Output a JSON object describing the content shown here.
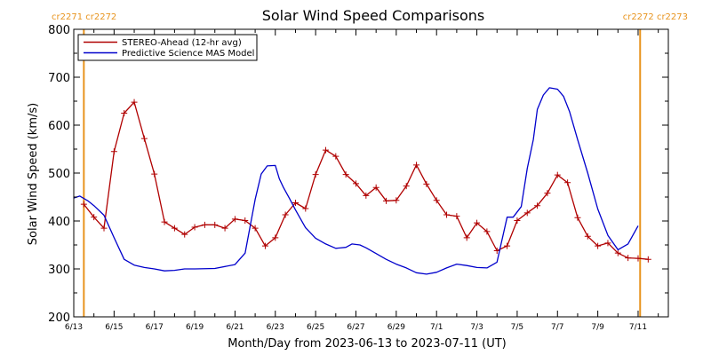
{
  "chart_data": {
    "type": "line",
    "title": "Solar Wind Speed Comparisons",
    "xlabel": "Month/Day from 2023-06-13 to 2023-07-11 (UT)",
    "ylabel": "Solar Wind Speed (km/s)",
    "ylim": [
      200,
      800
    ],
    "y_ticks": [
      200,
      300,
      400,
      500,
      600,
      700,
      800
    ],
    "xlim": [
      0,
      29.5
    ],
    "x_unit": "days since 2023-06-13",
    "x_ticks": [
      {
        "x": 0,
        "label": "6/13"
      },
      {
        "x": 2,
        "label": "6/15"
      },
      {
        "x": 4,
        "label": "6/17"
      },
      {
        "x": 6,
        "label": "6/19"
      },
      {
        "x": 8,
        "label": "6/21"
      },
      {
        "x": 10,
        "label": "6/23"
      },
      {
        "x": 12,
        "label": "6/25"
      },
      {
        "x": 14,
        "label": "6/27"
      },
      {
        "x": 16,
        "label": "6/29"
      },
      {
        "x": 18,
        "label": "7/1"
      },
      {
        "x": 20,
        "label": "7/3"
      },
      {
        "x": 22,
        "label": "7/5"
      },
      {
        "x": 24,
        "label": "7/7"
      },
      {
        "x": 26,
        "label": "7/9"
      },
      {
        "x": 28,
        "label": "7/11"
      }
    ],
    "vertical_markers": [
      {
        "x": 0.5,
        "color": "#e8941e"
      },
      {
        "x": 28.1,
        "color": "#e8941e"
      }
    ],
    "corner_labels": {
      "left": "cr2271 cr2272",
      "right": "cr2272 cr2273"
    },
    "legend": {
      "position": "top-left",
      "entries": [
        {
          "label": "STEREO-Ahead (12-hr avg)",
          "color": "#b00000"
        },
        {
          "label": "Predictive Science MAS Model",
          "color": "#0000cc"
        }
      ]
    },
    "series": [
      {
        "name": "STEREO-Ahead (12-hr avg)",
        "color": "#b00000",
        "markers": true,
        "x": [
          0.5,
          1.0,
          1.5,
          2.0,
          2.5,
          3.0,
          3.5,
          4.0,
          4.5,
          5.0,
          5.5,
          6.0,
          6.5,
          7.0,
          7.5,
          8.0,
          8.5,
          9.0,
          9.5,
          10.0,
          10.5,
          11.0,
          11.5,
          12.0,
          12.5,
          13.0,
          13.5,
          14.0,
          14.5,
          15.0,
          15.5,
          16.0,
          16.5,
          17.0,
          17.5,
          18.0,
          18.5,
          19.0,
          19.5,
          20.0,
          20.5,
          21.0,
          21.5,
          22.0,
          22.5,
          23.0,
          23.5,
          24.0,
          24.5,
          25.0,
          25.5,
          26.0,
          26.5,
          27.0,
          27.5,
          28.0,
          28.5
        ],
        "values": [
          435,
          408,
          385,
          545,
          625,
          648,
          572,
          498,
          398,
          385,
          372,
          387,
          392,
          392,
          385,
          404,
          401,
          385,
          348,
          365,
          413,
          438,
          426,
          497,
          548,
          535,
          497,
          478,
          453,
          470,
          442,
          443,
          473,
          517,
          477,
          443,
          413,
          410,
          365,
          396,
          378,
          338,
          348,
          401,
          417,
          432,
          458,
          496,
          480,
          407,
          368,
          348,
          354,
          333,
          323,
          322,
          320
        ]
      },
      {
        "name": "Predictive Science MAS Model",
        "color": "#0000cc",
        "markers": false,
        "x": [
          0,
          0.3,
          0.7,
          1.0,
          1.5,
          2.0,
          2.5,
          3.0,
          3.5,
          4.0,
          4.5,
          5.0,
          5.5,
          6.0,
          7.0,
          8.0,
          8.5,
          9.0,
          9.3,
          9.6,
          10.0,
          10.2,
          10.4,
          10.7,
          11.0,
          11.5,
          12.0,
          12.5,
          13.0,
          13.5,
          13.8,
          14.2,
          14.5,
          15.0,
          15.5,
          16.0,
          16.5,
          17.0,
          17.5,
          18.0,
          18.5,
          19.0,
          19.5,
          20.0,
          20.5,
          21.0,
          21.5,
          21.8,
          22.2,
          22.5,
          22.8,
          23.0,
          23.3,
          23.6,
          24.0,
          24.3,
          24.6,
          25.0,
          25.5,
          26.0,
          26.5,
          27.0,
          27.5,
          28.0
        ],
        "values": [
          448,
          452,
          442,
          432,
          412,
          365,
          320,
          308,
          303,
          300,
          296,
          297,
          300,
          300,
          301,
          309,
          333,
          445,
          498,
          515,
          516,
          488,
          470,
          447,
          423,
          386,
          364,
          352,
          343,
          345,
          352,
          350,
          344,
          332,
          320,
          310,
          302,
          292,
          289,
          293,
          302,
          310,
          307,
          303,
          302,
          314,
          408,
          408,
          430,
          510,
          570,
          633,
          663,
          678,
          675,
          660,
          628,
          570,
          500,
          425,
          370,
          340,
          352,
          390
        ]
      }
    ]
  }
}
